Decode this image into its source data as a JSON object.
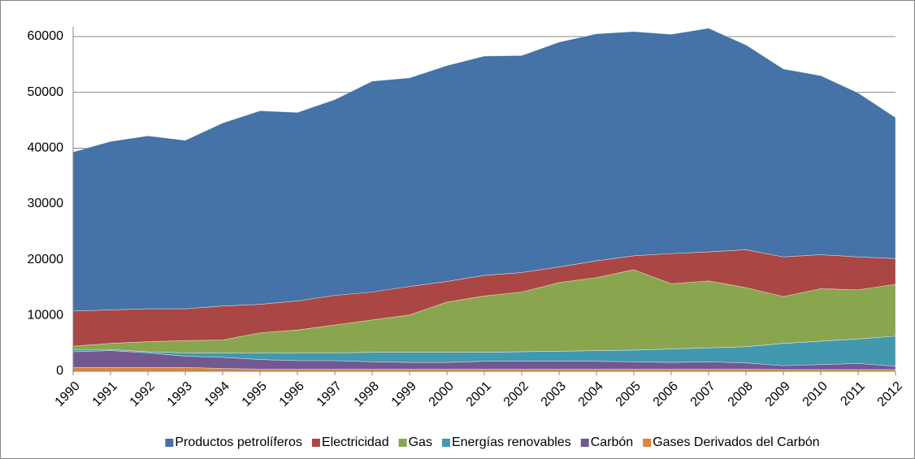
{
  "chart_data": {
    "type": "stacked_area",
    "categories": [
      "1990",
      "1991",
      "1992",
      "1993",
      "1994",
      "1995",
      "1996",
      "1997",
      "1998",
      "1999",
      "2000",
      "2001",
      "2002",
      "2003",
      "2004",
      "2005",
      "2006",
      "2007",
      "2008",
      "2009",
      "2010",
      "2011",
      "2012"
    ],
    "series": [
      {
        "name": "Gases Derivados del Carbón",
        "color": "#db843d",
        "values": [
          700,
          700,
          700,
          700,
          500,
          400,
          400,
          400,
          400,
          400,
          400,
          400,
          400,
          400,
          400,
          400,
          400,
          400,
          400,
          300,
          300,
          300,
          300
        ]
      },
      {
        "name": "Carbón",
        "color": "#71588f",
        "values": [
          2800,
          3000,
          2600,
          2000,
          2000,
          1700,
          1500,
          1500,
          1300,
          1200,
          1200,
          1400,
          1400,
          1400,
          1400,
          1300,
          1200,
          1300,
          1100,
          700,
          900,
          1100,
          600
        ]
      },
      {
        "name": "Energías renovables",
        "color": "#4198af",
        "values": [
          400,
          200,
          200,
          600,
          800,
          1200,
          1400,
          1400,
          1700,
          1800,
          1800,
          1600,
          1700,
          1800,
          1900,
          2100,
          2400,
          2500,
          2900,
          4000,
          4200,
          4400,
          5400
        ]
      },
      {
        "name": "Gas",
        "color": "#89a54e",
        "values": [
          600,
          1100,
          1800,
          2200,
          2300,
          3600,
          4100,
          5000,
          5800,
          6700,
          9000,
          10100,
          10700,
          12300,
          13100,
          14400,
          11700,
          12000,
          10600,
          8400,
          9400,
          8800,
          9300
        ]
      },
      {
        "name": "Electricidad",
        "color": "#aa4643",
        "values": [
          6300,
          6000,
          5900,
          5700,
          6100,
          5100,
          5200,
          5300,
          5000,
          5100,
          3700,
          3700,
          3500,
          2800,
          3000,
          2500,
          5400,
          5200,
          6800,
          7100,
          6100,
          5900,
          4600
        ]
      },
      {
        "name": "Productos petrolíferos",
        "color": "#4572a7",
        "values": [
          28500,
          30200,
          31000,
          30200,
          32800,
          34700,
          33800,
          35100,
          37800,
          37400,
          38700,
          39300,
          38900,
          40300,
          40700,
          40200,
          39300,
          40100,
          36700,
          33700,
          32100,
          29400,
          25300
        ]
      }
    ],
    "ylim": [
      0,
      60000
    ],
    "yticks": [
      0,
      10000,
      20000,
      30000,
      40000,
      50000,
      60000
    ],
    "grid": true,
    "legend": "bottom"
  }
}
